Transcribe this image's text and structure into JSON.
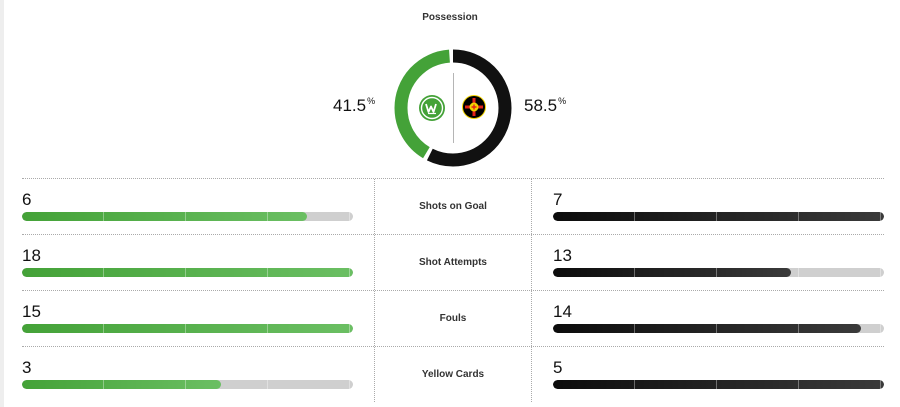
{
  "possession": {
    "title": "Possession",
    "home_value": "41.5",
    "away_value": "58.5",
    "unit": "%",
    "home_fraction": 0.415,
    "away_fraction": 0.585
  },
  "teams": {
    "home": {
      "crest_icon": "wolfsburg-crest-icon",
      "color": "#44a238"
    },
    "away": {
      "crest_icon": "leverkusen-crest-icon",
      "color": "#111111"
    }
  },
  "stats": [
    {
      "label": "Shots on Goal",
      "home": "6",
      "away": "7",
      "home_fraction": 0.86,
      "away_fraction": 1.0
    },
    {
      "label": "Shot Attempts",
      "home": "18",
      "away": "13",
      "home_fraction": 1.0,
      "away_fraction": 0.72
    },
    {
      "label": "Fouls",
      "home": "15",
      "away": "14",
      "home_fraction": 1.0,
      "away_fraction": 0.93
    },
    {
      "label": "Yellow Cards",
      "home": "3",
      "away": "5",
      "home_fraction": 0.6,
      "away_fraction": 1.0
    }
  ]
}
